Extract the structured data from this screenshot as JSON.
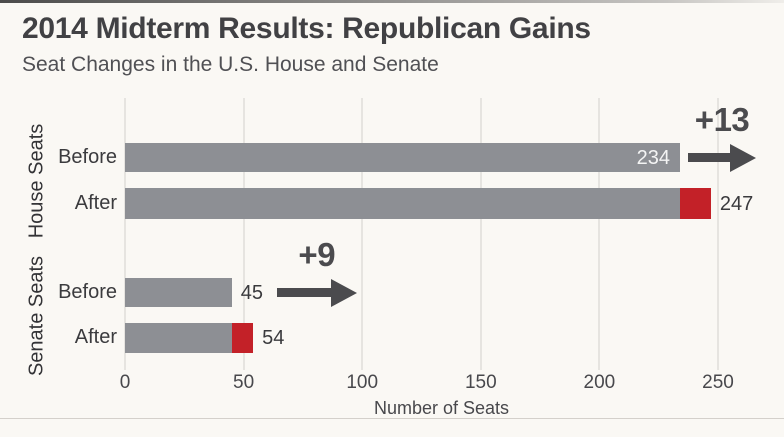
{
  "header": {
    "title": "2014 Midterm Results: Republican Gains",
    "subtitle": "Seat Changes in the U.S. House and Senate"
  },
  "chart_data": {
    "type": "bar",
    "orientation": "horizontal",
    "title": "2014 Midterm Results: Republican Gains",
    "subtitle": "Seat Changes in the U.S. House and Senate",
    "xlabel": "Number of Seats",
    "x_ticks": [
      0,
      50,
      100,
      150,
      200,
      250
    ],
    "xlim": [
      0,
      250
    ],
    "grid": "vertical",
    "legend": "none",
    "groups": [
      {
        "label": "House Seats",
        "gain_annotation": "+13",
        "rows": [
          {
            "label": "Before",
            "value": 234,
            "value_label": "234",
            "value_label_inside": true
          },
          {
            "label": "After",
            "value": 247,
            "base": 234,
            "gain": 13,
            "value_label": "247",
            "value_label_inside": false
          }
        ]
      },
      {
        "label": "Senate Seats",
        "gain_annotation": "+9",
        "rows": [
          {
            "label": "Before",
            "value": 45,
            "value_label": "45",
            "value_label_inside": false
          },
          {
            "label": "After",
            "value": 54,
            "base": 45,
            "gain": 9,
            "value_label": "54",
            "value_label_inside": false
          }
        ]
      }
    ],
    "colors": {
      "bar": "#8d8f94",
      "gain": "#c32128",
      "annotation": "#4b4b4e",
      "grid": "#e6e4e0",
      "background": "#faf8f4",
      "value_inside_text": "#f4f4f4",
      "value_outside_text": "#3a3a3d"
    }
  }
}
